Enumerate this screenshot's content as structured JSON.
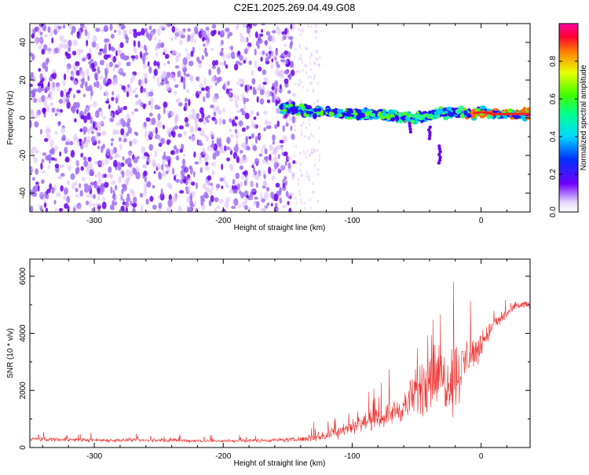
{
  "title": "C2E1.2025.269.04.49.G08",
  "colors": {
    "scatter_weak": "#d9b8ff",
    "scatter_mid": "#a070f5",
    "scatter_strong": "#6a00ee",
    "snr_line": "#ee3030"
  },
  "chart_data": [
    {
      "type": "heatmap",
      "xlabel": "Height of straight line (km)",
      "ylabel": "Frequency (Hz)",
      "xlim": [
        -350,
        38
      ],
      "ylim": [
        -50,
        50
      ],
      "xticks": [
        -300,
        -200,
        -100,
        0
      ],
      "yticks": [
        -40,
        -20,
        0,
        20,
        40
      ],
      "grid": false,
      "noise_region_x": [
        -350,
        -145
      ],
      "signal_track": {
        "x": [
          -155,
          -140,
          -120,
          -100,
          -80,
          -60,
          -50,
          -40,
          -30,
          -20,
          -10,
          0,
          10,
          20,
          38
        ],
        "freq": [
          5,
          4,
          3,
          2,
          2,
          0,
          0,
          1,
          3,
          3,
          2,
          3,
          2,
          2,
          2
        ]
      },
      "colorbar": {
        "label": "Normalized spectral amplitude",
        "ticks": [
          0.0,
          0.2,
          0.4,
          0.6,
          0.8
        ],
        "range": [
          0,
          1
        ]
      }
    },
    {
      "type": "line",
      "xlabel": "Height of straight line (km)",
      "ylabel": "SNR (10 * v/v)",
      "xlim": [
        -350,
        38
      ],
      "ylim": [
        0,
        6600
      ],
      "xticks": [
        -300,
        -200,
        -100,
        0
      ],
      "yticks": [
        0,
        2000,
        4000,
        6000
      ],
      "grid": false,
      "series": [
        {
          "x": [
            -350,
            -300,
            -250,
            -200,
            -160,
            -140,
            -120,
            -110,
            -100,
            -90,
            -80,
            -70,
            -60,
            -50,
            -45,
            -40,
            -35,
            -30,
            -25,
            -20,
            -15,
            -10,
            -5,
            0,
            5,
            10,
            20,
            30,
            38
          ],
          "values": [
            300,
            260,
            250,
            230,
            260,
            280,
            420,
            600,
            750,
            900,
            1000,
            1200,
            1400,
            1900,
            2200,
            2700,
            2500,
            2400,
            2400,
            2600,
            2700,
            3300,
            3300,
            3600,
            4000,
            4300,
            4700,
            5000,
            5000
          ],
          "spread": [
            120,
            100,
            90,
            90,
            100,
            120,
            300,
            400,
            400,
            450,
            500,
            600,
            700,
            1300,
            1700,
            2200,
            1800,
            1700,
            1700,
            1900,
            1400,
            1200,
            800,
            700,
            500,
            400,
            300,
            250,
            200
          ]
        }
      ]
    }
  ]
}
